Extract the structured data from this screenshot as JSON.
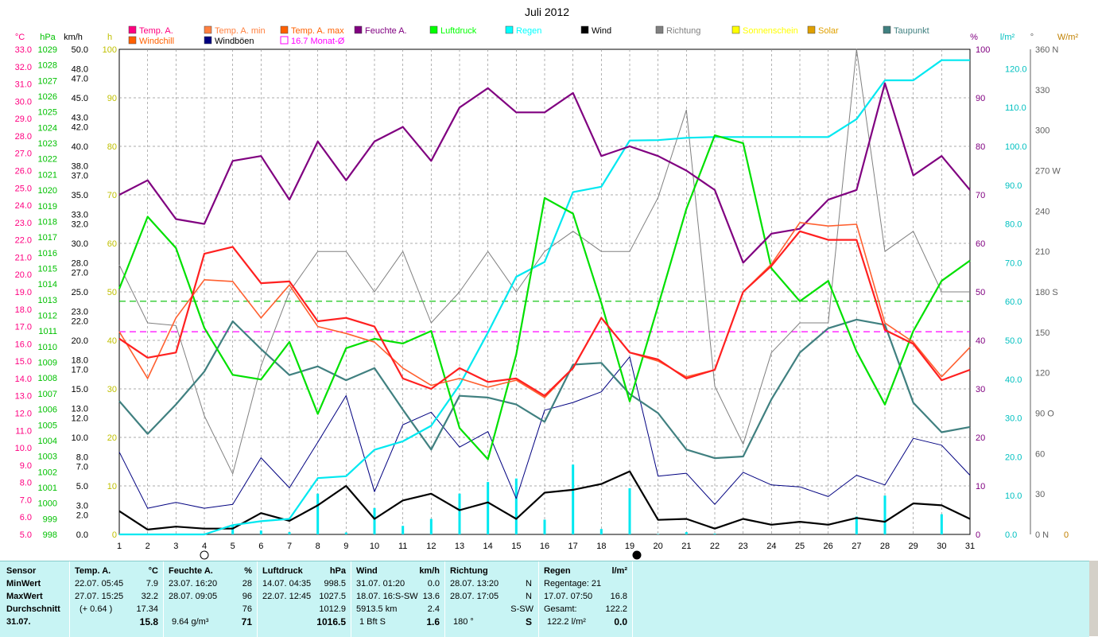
{
  "title": "Juli 2012",
  "legend": {
    "row1": [
      {
        "label": "Temp. A.",
        "color": "#ff0080"
      },
      {
        "label": "Temp. A. min",
        "color": "#ff8040"
      },
      {
        "label": "Temp. A. max",
        "color": "#ff6000"
      },
      {
        "label": "Feuchte A.",
        "color": "#800080"
      },
      {
        "label": "Luftdruck",
        "color": "#00ff00"
      },
      {
        "label": "Regen",
        "color": "#00ffff"
      },
      {
        "label": "Wind",
        "color": "#000000"
      },
      {
        "label": "Richtung",
        "color": "#808080"
      },
      {
        "label": "Sonnenschein",
        "color": "#ffff00"
      },
      {
        "label": "Solar",
        "color": "#e0a000"
      },
      {
        "label": "Taupunkt",
        "color": "#408080"
      }
    ],
    "row2": [
      {
        "label": "Windchill",
        "color": "#ff6000"
      },
      {
        "label": "Windböen",
        "color": "#000080"
      },
      {
        "label": "16.7 Monat-Ø",
        "color": "#ff00ff",
        "hollow": true
      }
    ]
  },
  "axis_units": {
    "celsius": "°C",
    "hpa": "hPa",
    "kmh": "km/h",
    "h": "h",
    "pct": "%",
    "rain": "l/m²",
    "deg": "°",
    "solar": "W/m²"
  },
  "axes": {
    "celsius_ticks": [
      "33.0",
      "32.0",
      "31.0",
      "30.0",
      "29.0",
      "28.0",
      "27.0",
      "26.0",
      "25.0",
      "24.0",
      "23.0",
      "22.0",
      "21.0",
      "20.0",
      "19.0",
      "18.0",
      "17.0",
      "16.0",
      "15.0",
      "14.0",
      "13.0",
      "12.0",
      "11.0",
      "10.0",
      "9.0",
      "8.0",
      "7.0",
      "6.0",
      "5.0"
    ],
    "hpa_ticks": [
      "1029",
      "1028",
      "1027",
      "1026",
      "1025",
      "1024",
      "1023",
      "1022",
      "1021",
      "1020",
      "1019",
      "1018",
      "1017",
      "1016",
      "1015",
      "1014",
      "1013",
      "1012",
      "1011",
      "1010",
      "1009",
      "1008",
      "1007",
      "1006",
      "1005",
      "1004",
      "1003",
      "1002",
      "1001",
      "1000",
      "999",
      "998"
    ],
    "kmh_ticks": [
      "50.0",
      "48.0",
      "47.0",
      "45.0",
      "43.0",
      "42.0",
      "40.0",
      "38.0",
      "37.0",
      "35.0",
      "33.0",
      "32.0",
      "30.0",
      "28.0",
      "27.0",
      "25.0",
      "23.0",
      "22.0",
      "20.0",
      "18.0",
      "17.0",
      "15.0",
      "13.0",
      "12.0",
      "10.0",
      "8.0",
      "7.0",
      "5.0",
      "3.0",
      "2.0",
      "0.0"
    ],
    "h_ticks": [
      "100",
      "90",
      "80",
      "70",
      "60",
      "50",
      "40",
      "30",
      "20",
      "10",
      "0"
    ],
    "pct_ticks": [
      "100",
      "90",
      "80",
      "70",
      "60",
      "50",
      "40",
      "30",
      "20",
      "10",
      "0"
    ],
    "rain_ticks": [
      "120.0",
      "110.0",
      "100.0",
      "90.0",
      "80.0",
      "70.0",
      "60.0",
      "50.0",
      "40.0",
      "30.0",
      "20.0",
      "10.0",
      "0.0"
    ],
    "deg_ticks": [
      "360 N",
      "330",
      "300",
      "270 W",
      "240",
      "210",
      "180 S",
      "150",
      "120",
      "90  O",
      "60",
      "30",
      "0   N"
    ],
    "solar_ticks": [
      "0"
    ],
    "x_ticks": [
      "1",
      "2",
      "3",
      "4",
      "5",
      "6",
      "7",
      "8",
      "9",
      "10",
      "11",
      "12",
      "13",
      "14",
      "15",
      "16",
      "17",
      "18",
      "19",
      "20",
      "21",
      "22",
      "23",
      "24",
      "25",
      "26",
      "27",
      "28",
      "29",
      "30",
      "31"
    ]
  },
  "chart_data": {
    "type": "line",
    "title": "Juli 2012",
    "x": [
      1,
      2,
      3,
      4,
      5,
      6,
      7,
      8,
      9,
      10,
      11,
      12,
      13,
      14,
      15,
      16,
      17,
      18,
      19,
      20,
      21,
      22,
      23,
      24,
      25,
      26,
      27,
      28,
      29,
      30,
      31
    ],
    "series": [
      {
        "name": "Temp. A.",
        "unit": "°C",
        "color": "#ff2020",
        "values": [
          16.3,
          15.2,
          15.5,
          21.2,
          21.6,
          19.5,
          19.6,
          17.3,
          17.5,
          17.0,
          14.0,
          13.4,
          14.6,
          13.8,
          14.0,
          13.0,
          14.6,
          17.5,
          15.5,
          15.1,
          14.0,
          14.5,
          19.0,
          20.5,
          22.5,
          22.0,
          22.0,
          16.8,
          16.0,
          13.9,
          14.5
        ]
      },
      {
        "name": "Temp. A. min",
        "unit": "°C",
        "color": "#ff6030",
        "values": [
          16.7,
          14.0,
          17.5,
          19.7,
          19.6,
          17.5,
          19.4,
          17.0,
          16.6,
          16.1,
          14.6,
          13.6,
          14.0,
          13.5,
          13.9,
          12.9,
          14.6,
          17.5,
          15.5,
          15.0,
          14.1,
          14.5,
          19.0,
          20.6,
          23.0,
          22.8,
          22.9,
          17.2,
          16.1,
          14.1,
          15.8
        ]
      },
      {
        "name": "Feuchte A.",
        "unit": "%",
        "color": "#800080",
        "values": [
          70,
          73,
          65,
          64,
          77,
          78,
          69,
          81,
          73,
          81,
          84,
          77,
          88,
          92,
          87,
          87,
          91,
          78,
          80,
          78,
          75,
          71,
          56,
          62,
          63,
          69,
          71,
          93,
          74,
          78,
          71
        ]
      },
      {
        "name": "Luftdruck",
        "unit": "hPa",
        "color": "#00e000",
        "values": [
          1013.7,
          1018.3,
          1016.3,
          1011.2,
          1008.2,
          1007.9,
          1010.3,
          1005.7,
          1009.9,
          1010.5,
          1010.2,
          1011.0,
          1004.8,
          1002.8,
          1009.5,
          1019.5,
          1018.5,
          1012.8,
          1006.5,
          1012.6,
          1018.8,
          1023.5,
          1023.0,
          1015.0,
          1012.9,
          1014.2,
          1009.7,
          1006.3,
          1011.0,
          1014.2,
          1015.5
        ]
      },
      {
        "name": "Regen",
        "unit": "l/m²",
        "color": "#00e8f0",
        "values": [
          0,
          0,
          0,
          0,
          2.4,
          3.4,
          4.0,
          14.5,
          15.0,
          21.8,
          24.0,
          28.0,
          38.5,
          52.0,
          66.4,
          70.2,
          88.2,
          89.6,
          101.5,
          101.6,
          102.2,
          102.4,
          102.4,
          102.4,
          102.4,
          102.4,
          107.0,
          117.0,
          117.0,
          122.2,
          122.2
        ]
      },
      {
        "name": "Wind",
        "unit": "km/h",
        "color": "#000000",
        "values": [
          2.4,
          0.5,
          0.8,
          0.6,
          0.6,
          2.2,
          1.4,
          3.0,
          5.0,
          1.6,
          3.5,
          4.2,
          2.5,
          3.3,
          1.6,
          4.3,
          4.6,
          5.2,
          6.5,
          1.5,
          1.6,
          0.6,
          1.6,
          1.0,
          1.3,
          1.0,
          1.7,
          1.3,
          3.2,
          3.0,
          1.6
        ]
      },
      {
        "name": "Windböen",
        "unit": "km/h",
        "color": "#000080",
        "values": [
          8.5,
          2.7,
          3.3,
          2.7,
          3.1,
          7.9,
          4.8,
          9.5,
          14.3,
          4.4,
          11.3,
          12.6,
          9.0,
          10.6,
          3.7,
          12.8,
          13.6,
          14.7,
          18.3,
          6.0,
          6.3,
          3.1,
          6.4,
          5.1,
          4.9,
          3.9,
          6.1,
          5.1,
          9.9,
          9.2,
          6.1
        ]
      },
      {
        "name": "Richtung",
        "unit": "°",
        "color": "#808080",
        "values": [
          200,
          157,
          155,
          88,
          45,
          125,
          180,
          210,
          210,
          180,
          210,
          157,
          180,
          210,
          180,
          210,
          225,
          210,
          210,
          250,
          315,
          110,
          67,
          135,
          157,
          157,
          360,
          210,
          225,
          180,
          180
        ]
      },
      {
        "name": "Taupunkt",
        "unit": "°C",
        "color": "#408080",
        "values": [
          12.7,
          10.8,
          12.5,
          14.4,
          17.3,
          15.7,
          14.2,
          14.7,
          13.9,
          14.6,
          12.2,
          9.9,
          13.0,
          12.9,
          12.5,
          11.5,
          14.8,
          14.9,
          13.1,
          12.0,
          9.9,
          9.4,
          9.5,
          12.8,
          15.5,
          16.9,
          17.4,
          17.1,
          12.6,
          10.9,
          11.2
        ]
      }
    ],
    "reference_lines": [
      {
        "name": "Luftdruck Monat-Ø",
        "unit": "hPa",
        "value": 1012.9,
        "color": "#00c000",
        "style": "dashed"
      },
      {
        "name": "16.7 Monat-Ø",
        "unit": "°C",
        "value": 16.7,
        "color": "#ff00ff",
        "style": "dashed"
      }
    ],
    "ylim_celsius": [
      5,
      33
    ],
    "ylim_hpa": [
      998,
      1029
    ],
    "ylim_kmh": [
      0,
      50
    ],
    "ylim_pct": [
      0,
      100
    ],
    "ylim_rain": [
      0,
      125
    ],
    "ylim_deg": [
      0,
      360
    ],
    "xlim": [
      1,
      31
    ],
    "grid": true,
    "moon_markers": [
      {
        "day": 4,
        "phase": "full"
      },
      {
        "day": 19,
        "phase": "new"
      }
    ]
  },
  "stats": {
    "sensor": {
      "header": "Sensor",
      "rows": [
        "MinWert",
        "MaxWert",
        "Durchschnitt",
        "31.07."
      ]
    },
    "temp": {
      "header": "Temp. A.",
      "unit": "°C",
      "min_date": "22.07.  05:45",
      "min_val": "7.9",
      "max_date": "27.07.  15:25",
      "max_val": "32.2",
      "avg_note": "(+ 0.64 )",
      "avg_val": "17.34",
      "current": "15.8"
    },
    "humidity": {
      "header": "Feuchte A.",
      "unit": "%",
      "min_date": "23.07.  16:20",
      "min_val": "28",
      "max_date": "28.07.  09:05",
      "max_val": "96",
      "avg_val": "76",
      "extra": "9.64 g/m³",
      "current": "71"
    },
    "pressure": {
      "header": "Luftdruck",
      "unit": "hPa",
      "min_date": "14.07.  04:35",
      "min_val": "998.5",
      "max_date": "22.07.  12:45",
      "max_val": "1027.5",
      "avg_val": "1012.9",
      "current": "1016.5"
    },
    "wind": {
      "header": "Wind",
      "unit": "km/h",
      "min_date": "31.07.  01:20",
      "min_val": "0.0",
      "max_date": "18.07.  16:S-SW",
      "max_val": "13.6",
      "avg_note": "5913.5 km",
      "avg_val": "2.4",
      "extra": "1 Bft S",
      "current": "1.6"
    },
    "direction": {
      "header": "Richtung",
      "min_date": "28.07.  13:20",
      "min_val": "N",
      "max_date": "28.07.  17:05",
      "max_val": "N",
      "avg_val": "S-SW",
      "extra": "180 °",
      "current": "S"
    },
    "rain": {
      "header": "Regen",
      "unit": "l/m²",
      "row1": "Regentage: 21",
      "max_date": "17.07.  07:50",
      "max_val": "16.8",
      "total_label": "Gesamt:",
      "total_val": "122.2",
      "extra": "122.2 l/m²",
      "current": "0.0"
    }
  }
}
